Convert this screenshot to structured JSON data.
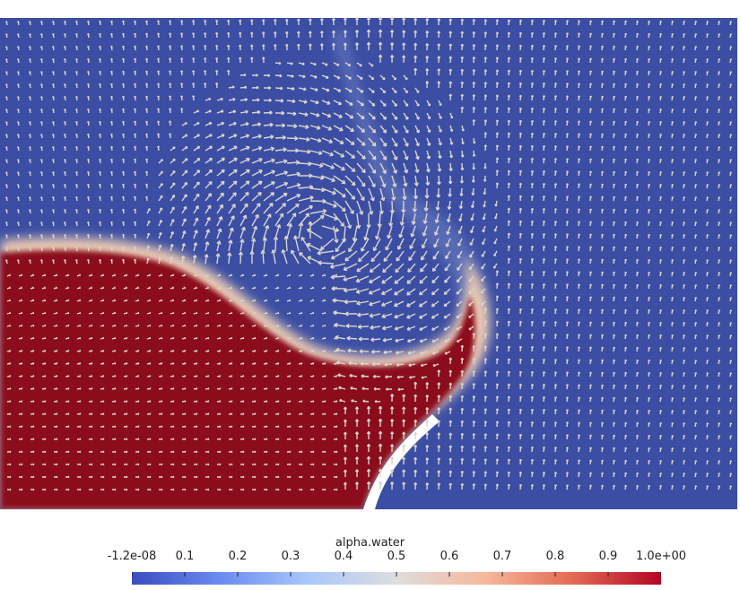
{
  "field": {
    "name": "alpha.water",
    "colors": {
      "water": "#8b0a1a",
      "air": "#3b4ea3",
      "interface": "#e9c9b3",
      "vector": "#d9d4cc",
      "wall": "#ffffff"
    }
  },
  "legend": {
    "title": "alpha.water",
    "range": [
      -1.2e-08,
      1.0
    ],
    "ticks": [
      {
        "value": -1.2e-08,
        "label": "-1.2e-08"
      },
      {
        "value": 0.1,
        "label": "0.1"
      },
      {
        "value": 0.2,
        "label": "0.2"
      },
      {
        "value": 0.3,
        "label": "0.3"
      },
      {
        "value": 0.4,
        "label": "0.4"
      },
      {
        "value": 0.5,
        "label": "0.5"
      },
      {
        "value": 0.6,
        "label": "0.6"
      },
      {
        "value": 0.7,
        "label": "0.7"
      },
      {
        "value": 0.8,
        "label": "0.8"
      },
      {
        "value": 0.9,
        "label": "0.9"
      },
      {
        "value": 1.0,
        "label": "1.0e+00"
      }
    ],
    "colormap": [
      "#3b4cc0",
      "#6a8bef",
      "#aac7fd",
      "#dddddd",
      "#f6b89c",
      "#e26952",
      "#b40426"
    ]
  }
}
